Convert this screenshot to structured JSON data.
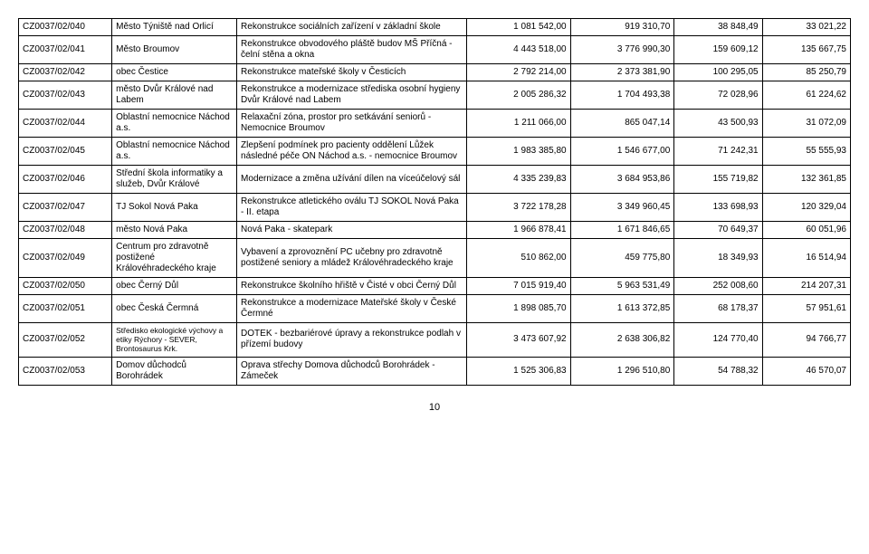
{
  "table": {
    "rows": [
      {
        "id": "CZ0037/02/040",
        "applicant": "Město Týniště nad Orlicí",
        "desc": "Rekonstrukce sociálních zařízení v základní škole",
        "n1": "1 081 542,00",
        "n2": "919 310,70",
        "n3": "38 848,49",
        "n4": "33 021,22"
      },
      {
        "id": "CZ0037/02/041",
        "applicant": "Město Broumov",
        "desc": "Rekonstrukce obvodového pláště budov MŠ Příčná - čelní stěna a okna",
        "n1": "4 443 518,00",
        "n2": "3 776 990,30",
        "n3": "159 609,12",
        "n4": "135 667,75"
      },
      {
        "id": "CZ0037/02/042",
        "applicant": "obec Čestice",
        "desc": "Rekonstrukce mateřské školy v Česticích",
        "n1": "2 792 214,00",
        "n2": "2 373 381,90",
        "n3": "100 295,05",
        "n4": "85 250,79"
      },
      {
        "id": "CZ0037/02/043",
        "applicant": "město Dvůr Králové nad Labem",
        "desc": "Rekonstrukce a modernizace střediska osobní hygieny Dvůr Králové nad Labem",
        "n1": "2 005 286,32",
        "n2": "1 704 493,38",
        "n3": "72 028,96",
        "n4": "61 224,62"
      },
      {
        "id": "CZ0037/02/044",
        "applicant": "Oblastní nemocnice Náchod a.s.",
        "desc": "Relaxační zóna, prostor pro setkávání seniorů - Nemocnice Broumov",
        "n1": "1 211 066,00",
        "n2": "865 047,14",
        "n3": "43 500,93",
        "n4": "31 072,09"
      },
      {
        "id": "CZ0037/02/045",
        "applicant": "Oblastní nemocnice Náchod a.s.",
        "desc": "Zlepšení podmínek pro pacienty oddělení Lůžek následné péče ON Náchod a.s. - nemocnice Broumov",
        "n1": "1 983 385,80",
        "n2": "1 546 677,00",
        "n3": "71 242,31",
        "n4": "55 555,93"
      },
      {
        "id": "CZ0037/02/046",
        "applicant": "Střední škola informatiky a služeb, Dvůr Králové",
        "desc": "Modernizace a změna užívání dílen na víceúčelový sál",
        "n1": "4 335 239,83",
        "n2": "3 684 953,86",
        "n3": "155 719,82",
        "n4": "132 361,85"
      },
      {
        "id": "CZ0037/02/047",
        "applicant": "TJ Sokol Nová Paka",
        "desc": "Rekonstrukce atletického oválu TJ SOKOL Nová Paka - II. etapa",
        "n1": "3 722 178,28",
        "n2": "3 349 960,45",
        "n3": "133 698,93",
        "n4": "120 329,04"
      },
      {
        "id": "CZ0037/02/048",
        "applicant": "město Nová Paka",
        "desc": "Nová Paka - skatepark",
        "n1": "1 966 878,41",
        "n2": "1 671 846,65",
        "n3": "70 649,37",
        "n4": "60 051,96"
      },
      {
        "id": "CZ0037/02/049",
        "applicant": "Centrum pro zdravotně postižené Královéhradeckého kraje",
        "desc": "Vybavení a zprovoznění PC učebny pro zdravotně postižené seniory a mládež Královéhradeckého kraje",
        "n1": "510 862,00",
        "n2": "459 775,80",
        "n3": "18 349,93",
        "n4": "16 514,94"
      },
      {
        "id": "CZ0037/02/050",
        "applicant": "obec Černý Důl",
        "desc": "Rekonstrukce školního hřiště v Čisté v obci Černý Důl",
        "n1": "7 015 919,40",
        "n2": "5 963 531,49",
        "n3": "252 008,60",
        "n4": "214 207,31"
      },
      {
        "id": "CZ0037/02/051",
        "applicant": "obec Česká Čermná",
        "desc": "Rekonstrukce a modernizace Mateřské školy v České Čermné",
        "n1": "1 898 085,70",
        "n2": "1 613 372,85",
        "n3": "68 178,37",
        "n4": "57 951,61"
      },
      {
        "id": "CZ0037/02/052",
        "applicant": "Středisko ekologické výchovy a etiky Rýchory - SEVER, Brontosaurus Krk.",
        "applicant_small": true,
        "desc": "DOTEK - bezbariérové úpravy a rekonstrukce podlah v přízemí budovy",
        "n1": "3 473 607,92",
        "n2": "2 638 306,82",
        "n3": "124 770,40",
        "n4": "94 766,77"
      },
      {
        "id": "CZ0037/02/053",
        "applicant": "Domov důchodců Borohrádek",
        "desc": "Oprava střechy Domova důchodců Borohrádek - Zámeček",
        "n1": "1 525 306,83",
        "n2": "1 296 510,80",
        "n3": "54 788,32",
        "n4": "46 570,07"
      }
    ]
  },
  "page_number": "10"
}
